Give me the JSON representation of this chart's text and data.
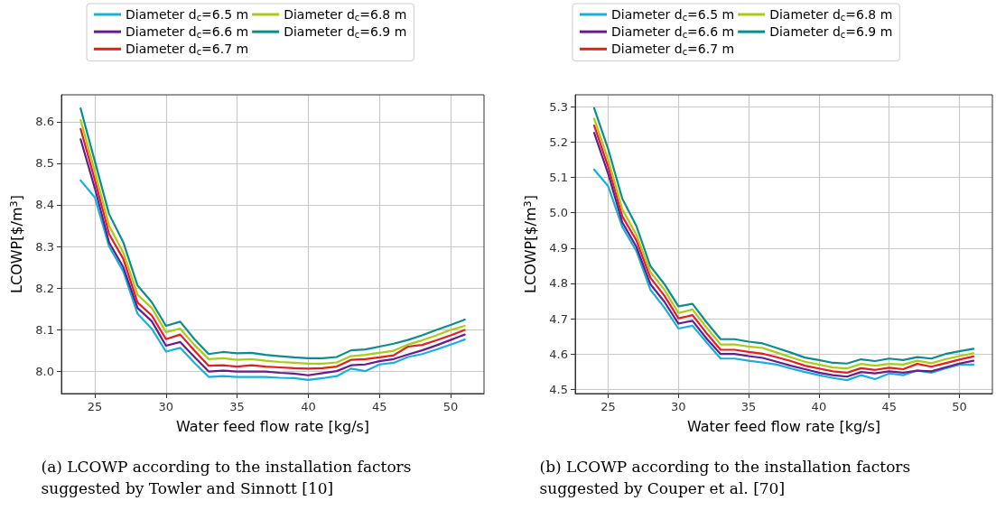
{
  "chart_data": [
    {
      "type": "line",
      "xlabel": "Water feed flow rate [kg/s]",
      "ylabel": "LCOWP[$/m$^{3}$]",
      "annotations": [
        "(a) LCOWP according to the installation factors suggested by Towler and Sinnott [10]"
      ],
      "x": [
        24,
        25,
        26,
        27,
        28,
        29,
        30,
        31,
        32,
        33,
        34,
        35,
        36,
        37,
        38,
        39,
        40,
        41,
        42,
        43,
        44,
        45,
        46,
        47,
        48,
        49,
        50,
        51
      ],
      "series": [
        {
          "name": "Diameter d$_{c}$=6.5 m",
          "color": "#17b0de",
          "values": [
            8.459,
            8.418,
            8.3,
            8.24,
            8.138,
            8.102,
            8.047,
            8.056,
            8.02,
            7.986,
            7.988,
            7.986,
            7.986,
            7.986,
            7.984,
            7.983,
            7.979,
            7.983,
            7.988,
            8.006,
            8.0,
            8.016,
            8.02,
            8.034,
            8.041,
            8.052,
            8.064,
            8.076
          ]
        },
        {
          "name": "Diameter d$_{c}$=6.6 m",
          "color": "#6a1b8a",
          "values": [
            8.558,
            8.44,
            8.31,
            8.25,
            8.152,
            8.12,
            8.061,
            8.07,
            8.034,
            7.999,
            8.001,
            7.999,
            7.999,
            7.999,
            7.996,
            7.994,
            7.99,
            7.995,
            8.0,
            8.014,
            8.016,
            8.024,
            8.029,
            8.04,
            8.05,
            8.062,
            8.075,
            8.088
          ]
        },
        {
          "name": "Diameter d$_{c}$=6.7 m",
          "color": "#e02020",
          "values": [
            8.583,
            8.46,
            8.33,
            8.27,
            8.165,
            8.134,
            8.077,
            8.088,
            8.049,
            8.013,
            8.014,
            8.011,
            8.014,
            8.011,
            8.009,
            8.007,
            8.006,
            8.007,
            8.011,
            8.027,
            8.029,
            8.033,
            8.038,
            8.059,
            8.063,
            8.074,
            8.086,
            8.099
          ]
        },
        {
          "name": "Diameter d$_{c}$=6.8 m",
          "color": "#a8cb17",
          "values": [
            8.604,
            8.48,
            8.35,
            8.285,
            8.184,
            8.152,
            8.094,
            8.102,
            8.063,
            8.029,
            8.031,
            8.027,
            8.029,
            8.025,
            8.022,
            8.02,
            8.018,
            8.018,
            8.021,
            8.036,
            8.039,
            8.044,
            8.049,
            8.064,
            8.074,
            8.086,
            8.099,
            8.109
          ]
        },
        {
          "name": "Diameter d$_{c}$=6.9 m",
          "color": "#0f8b8d",
          "values": [
            8.632,
            8.505,
            8.378,
            8.31,
            8.206,
            8.166,
            8.109,
            8.119,
            8.077,
            8.041,
            8.046,
            8.043,
            8.044,
            8.039,
            8.036,
            8.033,
            8.031,
            8.031,
            8.034,
            8.05,
            8.052,
            8.059,
            8.066,
            8.075,
            8.086,
            8.099,
            8.111,
            8.124
          ]
        }
      ],
      "xlim": [
        22.65,
        52.35
      ],
      "xticks": [
        25,
        30,
        35,
        40,
        45,
        50
      ],
      "ylim": [
        7.946,
        8.665
      ],
      "yticks": [
        {
          "value": 8,
          "label": "8.0"
        },
        8.1,
        8.2,
        8.3,
        8.4,
        8.5,
        8.6
      ],
      "grid": true,
      "legend": "top",
      "marker": "none",
      "line_style": "solid"
    },
    {
      "type": "line",
      "xlabel": "Water feed flow rate [kg/s]",
      "ylabel": "LCOWP[$/m$^{3}$]",
      "annotations": [
        "(b) LCOWP according to the installation factors suggested by Couper et al. [70]"
      ],
      "x": [
        24,
        25,
        26,
        27,
        28,
        29,
        30,
        31,
        32,
        33,
        34,
        35,
        36,
        37,
        38,
        39,
        40,
        41,
        42,
        43,
        44,
        45,
        46,
        47,
        48,
        49,
        50,
        51
      ],
      "series": [
        {
          "name": "Diameter d$_{c}$=6.5 m",
          "color": "#17b0de",
          "values": [
            5.122,
            5.075,
            4.96,
            4.892,
            4.782,
            4.731,
            4.672,
            4.68,
            4.633,
            4.587,
            4.587,
            4.581,
            4.576,
            4.57,
            4.559,
            4.549,
            4.54,
            4.532,
            4.526,
            4.54,
            4.529,
            4.545,
            4.54,
            4.553,
            4.547,
            4.559,
            4.57,
            4.57
          ]
        },
        {
          "name": "Diameter d$_{c}$=6.6 m",
          "color": "#6a1b8a",
          "values": [
            5.226,
            5.11,
            4.973,
            4.904,
            4.798,
            4.748,
            4.686,
            4.694,
            4.644,
            4.6,
            4.6,
            4.594,
            4.589,
            4.578,
            4.567,
            4.557,
            4.547,
            4.54,
            4.536,
            4.549,
            4.545,
            4.551,
            4.547,
            4.553,
            4.551,
            4.562,
            4.573,
            4.581
          ]
        },
        {
          "name": "Diameter d$_{c}$=6.7 m",
          "color": "#e02020",
          "values": [
            5.247,
            5.13,
            4.99,
            4.922,
            4.816,
            4.765,
            4.701,
            4.71,
            4.659,
            4.612,
            4.612,
            4.606,
            4.601,
            4.591,
            4.58,
            4.567,
            4.559,
            4.551,
            4.547,
            4.56,
            4.555,
            4.561,
            4.557,
            4.572,
            4.564,
            4.574,
            4.584,
            4.593
          ]
        },
        {
          "name": "Diameter d$_{c}$=6.8 m",
          "color": "#a8cb17",
          "values": [
            5.266,
            5.15,
            5.01,
            4.938,
            4.832,
            4.782,
            4.716,
            4.726,
            4.675,
            4.627,
            4.627,
            4.621,
            4.617,
            4.604,
            4.591,
            4.578,
            4.57,
            4.562,
            4.559,
            4.572,
            4.567,
            4.572,
            4.57,
            4.581,
            4.574,
            4.585,
            4.594,
            4.602
          ]
        },
        {
          "name": "Diameter d$_{c}$=6.9 m",
          "color": "#0f8b8d",
          "values": [
            5.296,
            5.18,
            5.04,
            4.963,
            4.849,
            4.798,
            4.735,
            4.742,
            4.69,
            4.642,
            4.642,
            4.635,
            4.63,
            4.617,
            4.604,
            4.59,
            4.583,
            4.575,
            4.573,
            4.585,
            4.58,
            4.587,
            4.583,
            4.591,
            4.587,
            4.6,
            4.608,
            4.615
          ]
        }
      ],
      "xlim": [
        22.65,
        52.35
      ],
      "xticks": [
        25,
        30,
        35,
        40,
        45,
        50
      ],
      "ylim": [
        4.488,
        5.334
      ],
      "yticks": [
        4.5,
        4.6,
        4.7,
        4.8,
        4.9,
        {
          "value": 5,
          "label": "5.0"
        },
        5.1,
        5.2,
        5.3
      ],
      "grid": true,
      "legend": "top",
      "marker": "none",
      "line_style": "solid"
    }
  ]
}
